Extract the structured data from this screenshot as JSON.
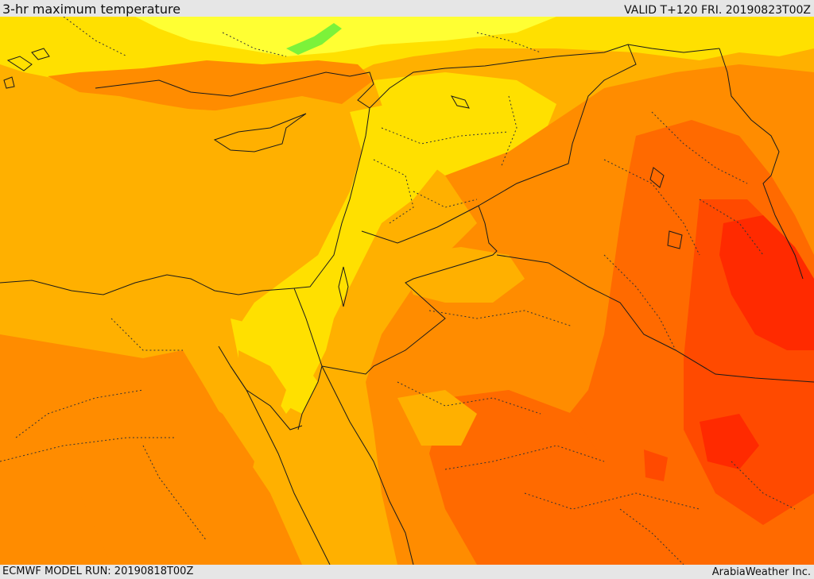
{
  "header": {
    "title": "3-hr maximum temperature",
    "valid_time": "VALID T+120 FRI. 20190823T00Z"
  },
  "footer": {
    "model_run": "ECMWF MODEL RUN: 20190818T00Z",
    "credit": "ArabiaWeather Inc."
  },
  "map": {
    "field": "3-hr maximum temperature",
    "colors": {
      "light_yellow": "#ffff33",
      "yellow": "#ffe000",
      "amber": "#ffb000",
      "orange": "#ff8c00",
      "dark_orange": "#ff6a00",
      "red_orange": "#ff4a00",
      "red": "#ff2a00",
      "green_patch": "#7cf23a",
      "country_border": "#1a1a1a",
      "province_border": "#333333"
    }
  }
}
